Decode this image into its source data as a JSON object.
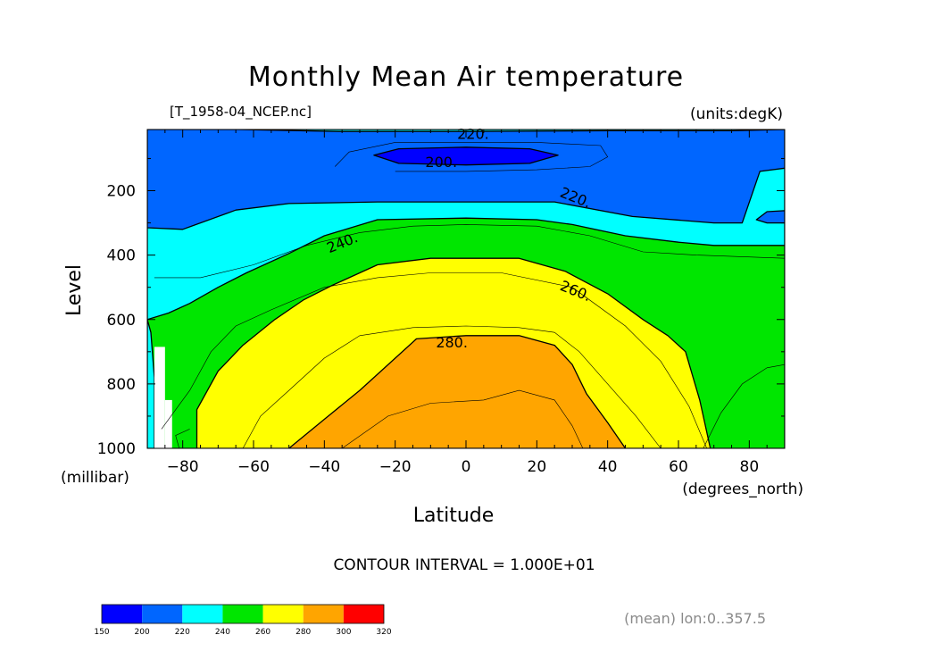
{
  "chart_data": {
    "type": "contour",
    "title": "Monthly Mean Air temperature",
    "dataset": "[T_1958-04_NCEP.nc]",
    "units": "(units:degK)",
    "xlabel": "Latitude",
    "xunits": "(degrees_north)",
    "ylabel": "Level",
    "yunits": "(millibar)",
    "xlim": [
      -90,
      90
    ],
    "ylim": [
      1000,
      10
    ],
    "x_ticks": [
      -80,
      -60,
      -40,
      -20,
      0,
      20,
      40,
      60,
      80
    ],
    "y_ticks": [
      200,
      400,
      600,
      800,
      1000
    ],
    "contour_interval": "CONTOUR INTERVAL = 1.000E+01",
    "note": "(mean) lon:0..357.5",
    "contour_labels": [
      {
        "text": "220.",
        "x": 2,
        "y": 22
      },
      {
        "text": "200.",
        "x": -7,
        "y": 110
      },
      {
        "text": "220.",
        "x": 31,
        "y": 220
      },
      {
        "text": "240.",
        "x": -35,
        "y": 360
      },
      {
        "text": "260.",
        "x": 31,
        "y": 510
      },
      {
        "text": "280.",
        "x": -4,
        "y": 670
      }
    ],
    "fill_bands": [
      {
        "min": 150,
        "max": 200,
        "color": "#0000ff"
      },
      {
        "min": 200,
        "max": 220,
        "color": "#0066ff"
      },
      {
        "min": 220,
        "max": 240,
        "color": "#00ffff"
      },
      {
        "min": 240,
        "max": 260,
        "color": "#00e600"
      },
      {
        "min": 260,
        "max": 280,
        "color": "#ffff00"
      },
      {
        "min": 280,
        "max": 300,
        "color": "#ffa500"
      },
      {
        "min": 300,
        "max": 320,
        "color": "#ff0000"
      }
    ],
    "colorbar_ticks": [
      "150",
      "200",
      "220",
      "240",
      "260",
      "280",
      "300",
      "320"
    ],
    "regions": {
      "cyan_top": [
        [
          -90,
          10
        ],
        [
          90,
          10
        ],
        [
          90,
          1000
        ],
        [
          -90,
          1000
        ]
      ],
      "blue_upper": [
        [
          -90,
          10
        ],
        [
          -64,
          10
        ],
        [
          -36,
          16
        ],
        [
          0,
          16
        ],
        [
          40,
          14
        ],
        [
          75,
          14
        ],
        [
          90,
          10
        ],
        [
          90,
          130
        ],
        [
          83,
          140
        ],
        [
          78,
          300
        ],
        [
          70,
          300
        ],
        [
          47,
          280
        ],
        [
          25,
          235
        ],
        [
          0,
          235
        ],
        [
          -25,
          235
        ],
        [
          -50,
          240
        ],
        [
          -65,
          260
        ],
        [
          -80,
          320
        ],
        [
          -90,
          315
        ]
      ],
      "blue_right": [
        [
          82,
          290
        ],
        [
          85,
          265
        ],
        [
          90,
          262
        ],
        [
          90,
          300
        ],
        [
          85,
          300
        ]
      ],
      "blue_core": [
        [
          -26,
          90
        ],
        [
          -19,
          70
        ],
        [
          0,
          65
        ],
        [
          18,
          70
        ],
        [
          26,
          90
        ],
        [
          18,
          115
        ],
        [
          0,
          120
        ],
        [
          -19,
          115
        ]
      ],
      "green": [
        [
          -90,
          600
        ],
        [
          -84,
          580
        ],
        [
          -78,
          550
        ],
        [
          -70,
          500
        ],
        [
          -62,
          455
        ],
        [
          -50,
          395
        ],
        [
          -40,
          340
        ],
        [
          -25,
          290
        ],
        [
          0,
          285
        ],
        [
          20,
          290
        ],
        [
          30,
          305
        ],
        [
          45,
          340
        ],
        [
          60,
          360
        ],
        [
          70,
          370
        ],
        [
          90,
          370
        ],
        [
          90,
          1000
        ],
        [
          -88,
          1000
        ],
        [
          -88,
          780
        ],
        [
          -89,
          640
        ]
      ],
      "yellow": [
        [
          -76,
          1000
        ],
        [
          -76,
          880
        ],
        [
          -70,
          760
        ],
        [
          -63,
          680
        ],
        [
          -54,
          600
        ],
        [
          -46,
          540
        ],
        [
          -38,
          495
        ],
        [
          -25,
          430
        ],
        [
          -10,
          410
        ],
        [
          15,
          410
        ],
        [
          28,
          450
        ],
        [
          40,
          520
        ],
        [
          50,
          600
        ],
        [
          57,
          650
        ],
        [
          62,
          700
        ],
        [
          66,
          850
        ],
        [
          69,
          1000
        ]
      ],
      "orange": [
        [
          -50,
          1000
        ],
        [
          -40,
          910
        ],
        [
          -30,
          820
        ],
        [
          -24,
          760
        ],
        [
          -14,
          660
        ],
        [
          0,
          650
        ],
        [
          15,
          650
        ],
        [
          25,
          680
        ],
        [
          30,
          740
        ],
        [
          34,
          830
        ],
        [
          40,
          920
        ],
        [
          45,
          1000
        ]
      ]
    },
    "thin_lines": [
      [
        [
          -88,
          470
        ],
        [
          -75,
          470
        ],
        [
          -60,
          430
        ],
        [
          -45,
          370
        ],
        [
          -30,
          330
        ],
        [
          -15,
          310
        ],
        [
          0,
          305
        ],
        [
          20,
          310
        ],
        [
          35,
          340
        ],
        [
          50,
          390
        ],
        [
          65,
          400
        ],
        [
          90,
          410
        ]
      ],
      [
        [
          -86,
          940
        ],
        [
          -78,
          820
        ],
        [
          -72,
          700
        ],
        [
          -65,
          620
        ],
        [
          -55,
          570
        ],
        [
          -40,
          500
        ],
        [
          -25,
          470
        ],
        [
          -10,
          455
        ],
        [
          10,
          455
        ],
        [
          30,
          500
        ],
        [
          45,
          620
        ],
        [
          55,
          730
        ],
        [
          63,
          870
        ],
        [
          68,
          1000
        ]
      ],
      [
        [
          -63,
          1000
        ],
        [
          -58,
          900
        ],
        [
          -50,
          820
        ],
        [
          -40,
          720
        ],
        [
          -30,
          650
        ],
        [
          -15,
          625
        ],
        [
          0,
          620
        ],
        [
          15,
          625
        ],
        [
          25,
          640
        ],
        [
          32,
          700
        ],
        [
          40,
          800
        ],
        [
          48,
          900
        ],
        [
          55,
          1000
        ]
      ],
      [
        [
          -35,
          1000
        ],
        [
          -22,
          900
        ],
        [
          -10,
          860
        ],
        [
          5,
          850
        ],
        [
          15,
          820
        ],
        [
          25,
          850
        ],
        [
          30,
          930
        ],
        [
          33,
          1000
        ]
      ],
      [
        [
          -37,
          125
        ],
        [
          -33,
          80
        ],
        [
          -20,
          50
        ],
        [
          0,
          50
        ],
        [
          20,
          50
        ],
        [
          38,
          60
        ],
        [
          40,
          95
        ],
        [
          35,
          125
        ],
        [
          20,
          135
        ],
        [
          0,
          140
        ],
        [
          -20,
          140
        ]
      ],
      [
        [
          67,
          1000
        ],
        [
          72,
          890
        ],
        [
          78,
          800
        ],
        [
          85,
          750
        ],
        [
          90,
          740
        ]
      ],
      [
        [
          -81,
          1000
        ],
        [
          -82,
          960
        ],
        [
          -78,
          940
        ]
      ]
    ],
    "white_patches": [
      {
        "lat_min": -88,
        "lat_max": -85,
        "p_min": 685,
        "p_max": 1000
      },
      {
        "lat_min": -85,
        "lat_max": -83,
        "p_min": 850,
        "p_max": 1000
      }
    ]
  }
}
